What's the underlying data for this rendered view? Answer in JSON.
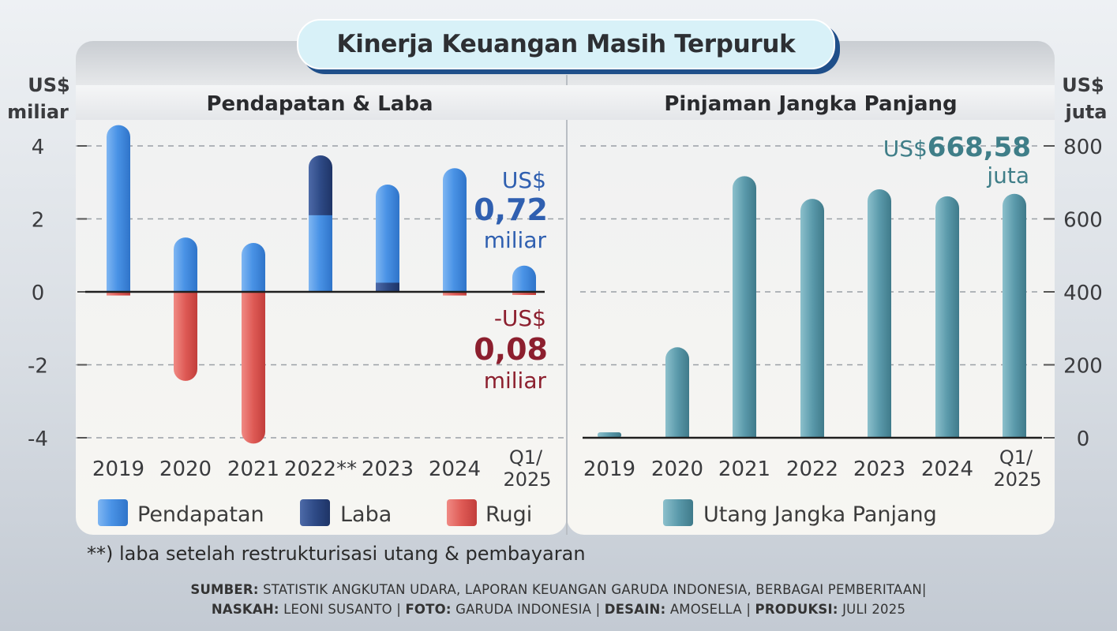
{
  "title": "Kinerja Keuangan Masih Terpuruk",
  "colors": {
    "pendapatan": "#3f8be0",
    "laba": "#2e4a86",
    "rugi": "#de5a55",
    "utang": "#5b9aab",
    "callout_blue": "#2f5fb0",
    "callout_red": "#8c1f2e",
    "callout_teal": "#3f7e88"
  },
  "chart_data": [
    {
      "type": "bar",
      "title": "Pendapatan & Laba",
      "ylabel": "US$ miliar",
      "categories": [
        "2019",
        "2020",
        "2021",
        "2022**",
        "2023",
        "2024",
        "Q1/ 2025"
      ],
      "series": [
        {
          "name": "Pendapatan",
          "values": [
            4.57,
            1.49,
            1.34,
            2.1,
            2.94,
            3.39,
            0.72
          ]
        },
        {
          "name": "Laba",
          "values": [
            0,
            0,
            0,
            3.74,
            0.25,
            0,
            0
          ]
        },
        {
          "name": "Rugi",
          "values": [
            -0.1,
            -2.44,
            -4.16,
            0,
            0,
            -0.1,
            -0.08
          ]
        }
      ],
      "yticks": [
        4,
        2,
        0,
        -2,
        -4
      ],
      "ytick_labels": [
        "4",
        "2",
        "0",
        "-2",
        "-4"
      ],
      "ylim": [
        -4.3,
        4.8
      ],
      "grid": true,
      "annotations": {
        "profit": {
          "l1": "US$",
          "l2": "0,72",
          "l3": "miliar"
        },
        "loss": {
          "l1": "-US$",
          "l2": "0,08",
          "l3": "miliar"
        }
      },
      "axis_label": {
        "l1": "US$",
        "l2": "miliar"
      }
    },
    {
      "type": "bar",
      "title": "Pinjaman Jangka Panjang",
      "ylabel": "US$ juta",
      "categories": [
        "2019",
        "2020",
        "2021",
        "2022",
        "2023",
        "2024",
        "Q1/ 2025"
      ],
      "series": [
        {
          "name": "Utang Jangka Panjang",
          "values": [
            15,
            248,
            717,
            655,
            681,
            662,
            668.58
          ]
        }
      ],
      "yticks": [
        800,
        600,
        400,
        200,
        0
      ],
      "ytick_labels": [
        "800",
        "600",
        "400",
        "200",
        "0"
      ],
      "ylim": [
        0,
        860
      ],
      "grid": true,
      "annotations": {
        "value": {
          "prefix": "US$",
          "number": "668,58",
          "unit": "juta"
        }
      },
      "axis_label": {
        "l1": "US$",
        "l2": "juta"
      }
    }
  ],
  "footnote": "**) laba setelah restrukturisasi utang & pembayaran",
  "credits": {
    "sumber_label": "SUMBER:",
    "sumber_text": " STATISTIK ANGKUTAN UDARA, LAPORAN KEUANGAN GARUDA INDONESIA, BERBAGAI PEMBERITAAN|",
    "naskah_label": "NASKAH:",
    "naskah_text": " LEONI SUSANTO | ",
    "foto_label": "FOTO:",
    "foto_text": "  GARUDA INDONESIA | ",
    "desain_label": "DESAIN:",
    "desain_text": " AMOSELLA | ",
    "produksi_label": "PRODUKSI:",
    "produksi_text": " JULI 2025"
  }
}
